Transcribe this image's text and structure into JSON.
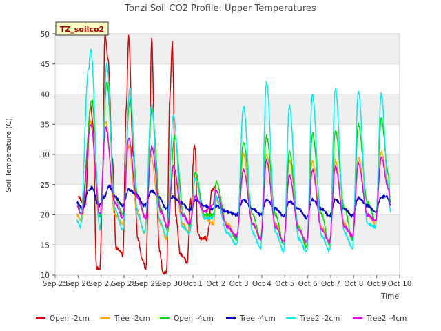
{
  "chart_data": {
    "type": "line",
    "title": "Tonzi Soil CO2 Profile: Upper Temperatures",
    "xlabel": "Time",
    "ylabel": "Soil Temperature (C)",
    "ylim": [
      10,
      50
    ],
    "xlim": [
      0,
      15
    ],
    "yticks": [
      10,
      15,
      20,
      25,
      30,
      35,
      40,
      45,
      50
    ],
    "xtick_labels": [
      "Sep 25",
      "Sep 26",
      "Sep 27",
      "Sep 28",
      "Sep 29",
      "Sep 30",
      "Oct 1",
      "Oct 2",
      "Oct 3",
      "Oct 4",
      "Oct 5",
      "Oct 6",
      "Oct 7",
      "Oct 8",
      "Oct 9",
      "Oct 10"
    ],
    "grid": "horizontal bands",
    "badge_label": "TZ_soilco2",
    "legend_position": "bottom",
    "series": [
      {
        "name": "Open -2cm",
        "color": "#dd0000",
        "peaks": [
          [
            1.0,
            23.0
          ],
          [
            1.3,
            21.5
          ],
          [
            1.55,
            38.0
          ],
          [
            1.65,
            35.0
          ],
          [
            1.8,
            11.2
          ],
          [
            1.95,
            11.0
          ],
          [
            2.05,
            22.0
          ],
          [
            2.17,
            50.0
          ],
          [
            2.3,
            46.0
          ],
          [
            2.5,
            29.0
          ],
          [
            2.65,
            14.5
          ],
          [
            2.85,
            14.0
          ],
          [
            2.95,
            13.2
          ],
          [
            3.1,
            38.0
          ],
          [
            3.2,
            49.5
          ],
          [
            3.4,
            30.0
          ],
          [
            3.6,
            16.0
          ],
          [
            3.8,
            12.5
          ],
          [
            3.95,
            11.0
          ],
          [
            4.1,
            30.0
          ],
          [
            4.2,
            49.5
          ],
          [
            4.35,
            30.0
          ],
          [
            4.55,
            14.0
          ],
          [
            4.7,
            10.3
          ],
          [
            4.85,
            10.5
          ],
          [
            5.0,
            40.0
          ],
          [
            5.1,
            48.5
          ],
          [
            5.25,
            20.0
          ],
          [
            5.45,
            13.5
          ],
          [
            5.6,
            13.0
          ],
          [
            5.75,
            12.0
          ],
          [
            5.9,
            22.5
          ],
          [
            5.95,
            21.0
          ],
          [
            6.0,
            28.0
          ],
          [
            6.05,
            31.5
          ],
          [
            6.1,
            31.0
          ],
          [
            6.2,
            17.0
          ],
          [
            6.35,
            16.0
          ],
          [
            6.55,
            16.2
          ],
          [
            6.6,
            15.8
          ],
          [
            6.7,
            18.0
          ],
          [
            6.8,
            24.0
          ],
          [
            6.95,
            24.5
          ]
        ]
      },
      {
        "name": "Tree -2cm",
        "color": "#ffa500",
        "peaks": [
          [
            0.95,
            20.0
          ],
          [
            1.15,
            19.0
          ],
          [
            1.55,
            35.5
          ],
          [
            1.95,
            18.0
          ],
          [
            2.2,
            35.5
          ],
          [
            2.6,
            20.0
          ],
          [
            2.95,
            18.5
          ],
          [
            3.2,
            31.5
          ],
          [
            3.55,
            21.0
          ],
          [
            3.9,
            17.0
          ],
          [
            4.15,
            30.0
          ],
          [
            4.6,
            18.5
          ],
          [
            4.85,
            16.0
          ],
          [
            5.15,
            28.0
          ],
          [
            5.55,
            18.5
          ],
          [
            5.85,
            17.0
          ],
          [
            6.1,
            26.0
          ],
          [
            6.5,
            19.5
          ],
          [
            6.9,
            18.5
          ],
          [
            7.0,
            22.5
          ],
          [
            7.5,
            18.5
          ],
          [
            7.9,
            16.0
          ],
          [
            8.2,
            30.0
          ],
          [
            8.6,
            18.5
          ],
          [
            8.95,
            16.0
          ],
          [
            9.2,
            30.0
          ],
          [
            9.6,
            18.5
          ],
          [
            9.95,
            15.5
          ],
          [
            10.2,
            29.0
          ],
          [
            10.6,
            18.0
          ],
          [
            10.95,
            15.0
          ],
          [
            11.2,
            29.0
          ],
          [
            11.6,
            18.0
          ],
          [
            11.95,
            15.5
          ],
          [
            12.2,
            29.0
          ],
          [
            12.6,
            18.5
          ],
          [
            12.95,
            16.0
          ],
          [
            13.2,
            29.5
          ],
          [
            13.6,
            20.0
          ],
          [
            13.95,
            18.5
          ],
          [
            14.2,
            30.5
          ],
          [
            14.5,
            25.0
          ],
          [
            14.6,
            21.5
          ]
        ]
      },
      {
        "name": "Open -4cm",
        "color": "#00dd00",
        "peaks": [
          [
            0.95,
            22.0
          ],
          [
            1.15,
            21.0
          ],
          [
            1.6,
            39.0
          ],
          [
            1.95,
            19.5
          ],
          [
            2.25,
            42.0
          ],
          [
            2.6,
            23.0
          ],
          [
            2.95,
            20.0
          ],
          [
            3.25,
            39.0
          ],
          [
            3.6,
            23.0
          ],
          [
            3.95,
            19.5
          ],
          [
            4.2,
            37.5
          ],
          [
            4.6,
            21.0
          ],
          [
            4.9,
            17.5
          ],
          [
            5.2,
            33.0
          ],
          [
            5.6,
            20.0
          ],
          [
            5.9,
            18.0
          ],
          [
            6.1,
            27.0
          ],
          [
            6.5,
            20.0
          ],
          [
            6.9,
            20.0
          ],
          [
            7.0,
            25.5
          ],
          [
            7.5,
            18.0
          ],
          [
            7.9,
            16.0
          ],
          [
            8.2,
            32.0
          ],
          [
            8.6,
            20.0
          ],
          [
            8.95,
            16.0
          ],
          [
            9.2,
            33.0
          ],
          [
            9.6,
            20.0
          ],
          [
            9.95,
            15.0
          ],
          [
            10.2,
            30.5
          ],
          [
            10.6,
            18.0
          ],
          [
            10.95,
            14.5
          ],
          [
            11.2,
            33.5
          ],
          [
            11.6,
            20.0
          ],
          [
            11.95,
            15.0
          ],
          [
            12.2,
            34.0
          ],
          [
            12.6,
            21.0
          ],
          [
            12.95,
            16.0
          ],
          [
            13.2,
            35.0
          ],
          [
            13.6,
            22.0
          ],
          [
            13.95,
            19.0
          ],
          [
            14.2,
            36.0
          ],
          [
            14.5,
            27.0
          ],
          [
            14.6,
            22.0
          ]
        ]
      },
      {
        "name": "Tree -4cm",
        "color": "#0000cc",
        "peaks": [
          [
            0.95,
            22.0
          ],
          [
            1.2,
            21.0
          ],
          [
            1.45,
            24.0
          ],
          [
            1.6,
            24.5
          ],
          [
            1.9,
            21.5
          ],
          [
            2.15,
            23.0
          ],
          [
            2.35,
            24.8
          ],
          [
            2.6,
            23.0
          ],
          [
            2.95,
            21.5
          ],
          [
            3.2,
            24.2
          ],
          [
            3.5,
            23.5
          ],
          [
            3.9,
            21.5
          ],
          [
            4.2,
            24.0
          ],
          [
            4.5,
            23.0
          ],
          [
            4.85,
            21.0
          ],
          [
            5.1,
            23.0
          ],
          [
            5.5,
            22.0
          ],
          [
            5.85,
            20.8
          ],
          [
            6.1,
            22.5
          ],
          [
            6.5,
            21.5
          ],
          [
            6.85,
            21.0
          ],
          [
            7.0,
            21.5
          ],
          [
            7.5,
            20.5
          ],
          [
            7.9,
            20.0
          ],
          [
            8.2,
            22.5
          ],
          [
            8.6,
            21.0
          ],
          [
            8.95,
            20.0
          ],
          [
            9.2,
            22.5
          ],
          [
            9.6,
            21.0
          ],
          [
            9.95,
            19.8
          ],
          [
            10.2,
            22.2
          ],
          [
            10.6,
            21.0
          ],
          [
            10.95,
            19.5
          ],
          [
            11.2,
            22.5
          ],
          [
            11.6,
            21.0
          ],
          [
            11.95,
            19.8
          ],
          [
            12.2,
            22.5
          ],
          [
            12.6,
            21.0
          ],
          [
            12.95,
            19.8
          ],
          [
            13.2,
            22.8
          ],
          [
            13.6,
            21.5
          ],
          [
            13.95,
            20.5
          ],
          [
            14.2,
            23.0
          ],
          [
            14.45,
            23.0
          ],
          [
            14.6,
            21.5
          ]
        ]
      },
      {
        "name": "Tree2 -2cm",
        "color": "#00eeee",
        "peaks": [
          [
            0.95,
            19.0
          ],
          [
            1.1,
            18.0
          ],
          [
            1.45,
            44.0
          ],
          [
            1.55,
            47.5
          ],
          [
            1.95,
            17.5
          ],
          [
            2.25,
            45.0
          ],
          [
            2.6,
            21.0
          ],
          [
            2.95,
            17.5
          ],
          [
            3.25,
            41.0
          ],
          [
            3.6,
            20.0
          ],
          [
            3.9,
            17.0
          ],
          [
            4.2,
            38.5
          ],
          [
            4.55,
            19.0
          ],
          [
            4.85,
            16.5
          ],
          [
            5.15,
            36.5
          ],
          [
            5.55,
            18.0
          ],
          [
            5.85,
            17.0
          ],
          [
            6.1,
            26.0
          ],
          [
            6.5,
            19.5
          ],
          [
            6.9,
            19.5
          ],
          [
            7.0,
            23.0
          ],
          [
            7.5,
            17.0
          ],
          [
            7.9,
            15.0
          ],
          [
            8.2,
            38.0
          ],
          [
            8.6,
            17.0
          ],
          [
            8.95,
            14.5
          ],
          [
            9.2,
            42.0
          ],
          [
            9.6,
            17.0
          ],
          [
            9.95,
            14.0
          ],
          [
            10.2,
            38.0
          ],
          [
            10.6,
            16.0
          ],
          [
            10.95,
            13.8
          ],
          [
            11.2,
            40.0
          ],
          [
            11.6,
            16.5
          ],
          [
            11.95,
            14.0
          ],
          [
            12.2,
            41.0
          ],
          [
            12.6,
            17.0
          ],
          [
            12.95,
            14.5
          ],
          [
            13.2,
            40.5
          ],
          [
            13.6,
            18.5
          ],
          [
            13.95,
            18.0
          ],
          [
            14.2,
            40.0
          ],
          [
            14.5,
            25.0
          ],
          [
            14.6,
            20.5
          ]
        ]
      },
      {
        "name": "Tree2 -4cm",
        "color": "#ee00ee",
        "peaks": [
          [
            0.95,
            21.5
          ],
          [
            1.15,
            20.0
          ],
          [
            1.55,
            35.0
          ],
          [
            1.95,
            20.0
          ],
          [
            2.2,
            34.5
          ],
          [
            2.6,
            22.0
          ],
          [
            2.95,
            19.5
          ],
          [
            3.2,
            32.8
          ],
          [
            3.55,
            23.0
          ],
          [
            3.95,
            19.5
          ],
          [
            4.2,
            31.3
          ],
          [
            4.6,
            20.5
          ],
          [
            4.9,
            18.0
          ],
          [
            5.15,
            28.0
          ],
          [
            5.55,
            20.0
          ],
          [
            5.85,
            18.5
          ],
          [
            6.1,
            23.0
          ],
          [
            6.5,
            20.5
          ],
          [
            6.85,
            21.5
          ],
          [
            7.0,
            24.0
          ],
          [
            7.5,
            18.0
          ],
          [
            7.9,
            16.5
          ],
          [
            8.2,
            27.5
          ],
          [
            8.6,
            18.5
          ],
          [
            8.95,
            16.0
          ],
          [
            9.2,
            29.0
          ],
          [
            9.6,
            18.0
          ],
          [
            9.95,
            15.5
          ],
          [
            10.2,
            26.5
          ],
          [
            10.6,
            17.5
          ],
          [
            10.95,
            15.5
          ],
          [
            11.2,
            27.5
          ],
          [
            11.6,
            17.5
          ],
          [
            11.95,
            15.5
          ],
          [
            12.2,
            28.0
          ],
          [
            12.6,
            18.0
          ],
          [
            12.95,
            16.5
          ],
          [
            13.2,
            28.5
          ],
          [
            13.6,
            20.0
          ],
          [
            13.95,
            19.0
          ],
          [
            14.2,
            29.5
          ],
          [
            14.5,
            24.5
          ],
          [
            14.6,
            21.5
          ]
        ]
      }
    ]
  }
}
